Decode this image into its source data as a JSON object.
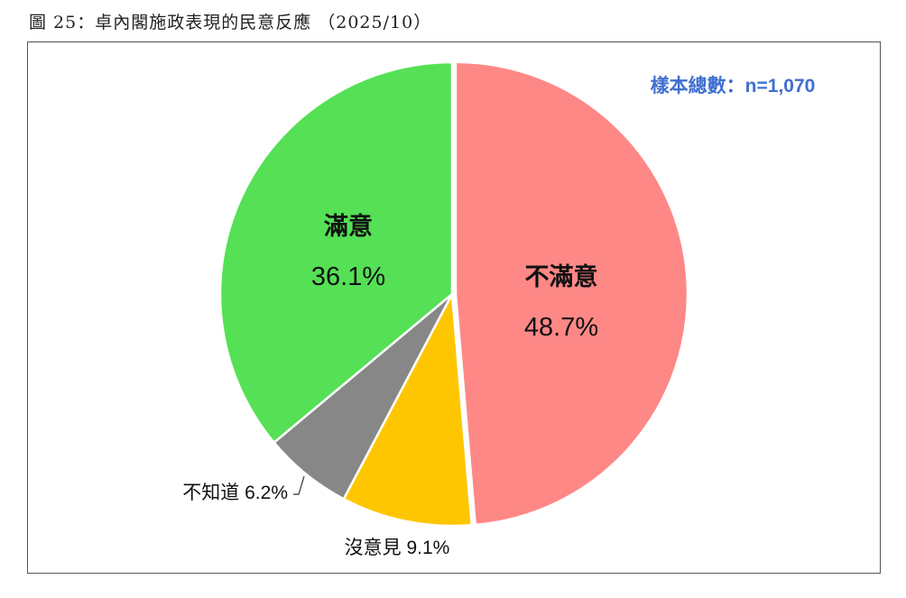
{
  "figure_title": "圖 25：卓內閣施政表現的民意反應 （2025/10）",
  "sample_note": "樣本總數：n=1,070",
  "chart_data": {
    "type": "pie",
    "title": "卓內閣施政表現的民意反應",
    "start_angle_deg": 0,
    "direction": "clockwise",
    "slices": [
      {
        "label": "不滿意",
        "value": 48.7,
        "value_label": "48.7%",
        "color": "#fe8886",
        "label_position": "inside"
      },
      {
        "label": "沒意見",
        "value": 9.1,
        "value_label": "9.1%",
        "color": "#fec600",
        "label_position": "outside"
      },
      {
        "label": "不知道",
        "value": 6.2,
        "value_label": "6.2%",
        "color": "#878787",
        "label_position": "outside"
      },
      {
        "label": "滿意",
        "value": 36.1,
        "value_label": "36.1%",
        "color": "#55e055",
        "label_position": "inside"
      }
    ]
  }
}
